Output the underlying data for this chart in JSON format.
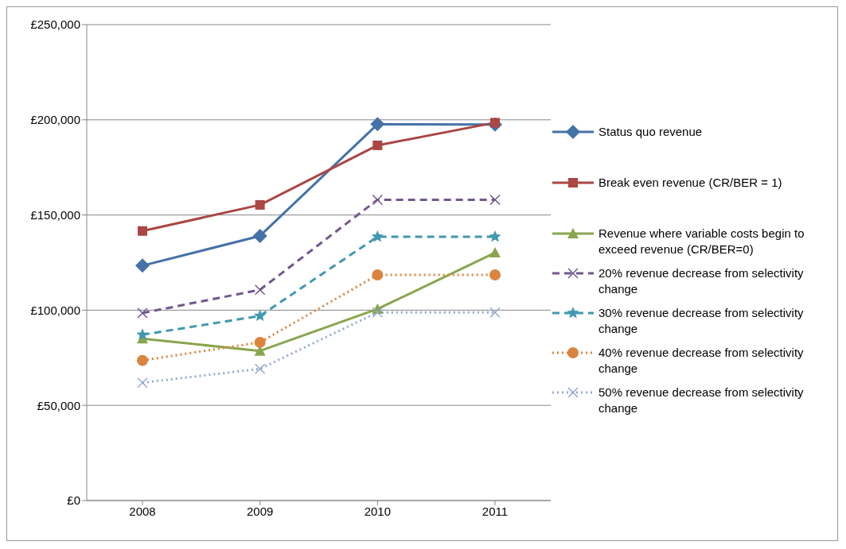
{
  "chart_data": {
    "type": "line",
    "categories": [
      "2008",
      "2009",
      "2010",
      "2011"
    ],
    "series": [
      {
        "name": "Status quo revenue",
        "color": "#4572a7",
        "marker": "diamond",
        "line_style": "solid",
        "values": [
          123400,
          139000,
          197700,
          197500
        ]
      },
      {
        "name": "Break even revenue (CR/BER = 1)",
        "color": "#aa4643",
        "marker": "square",
        "line_style": "solid",
        "values": [
          141600,
          155300,
          186600,
          198500
        ]
      },
      {
        "name": "Revenue where variable costs begin to exceed revenue (CR/BER=0)",
        "color": "#89a54e",
        "marker": "triangle",
        "line_style": "solid",
        "values": [
          85000,
          78600,
          100600,
          130200
        ]
      },
      {
        "name": "20% revenue decrease from selectivity change",
        "color": "#71588f",
        "marker": "cross",
        "line_style": "dashed",
        "values": [
          98500,
          110700,
          158000,
          158000
        ]
      },
      {
        "name": "30% revenue decrease from selectivity change",
        "color": "#4198af",
        "marker": "star",
        "line_style": "dashed",
        "values": [
          87100,
          97000,
          138600,
          138600
        ]
      },
      {
        "name": "40% revenue decrease from selectivity change",
        "color": "#db843d",
        "marker": "circle",
        "line_style": "dotted",
        "values": [
          73600,
          83100,
          118500,
          118500
        ]
      },
      {
        "name": "50% revenue decrease from selectivity change",
        "color": "#93a9cf",
        "marker": "cross",
        "line_style": "dotted",
        "values": [
          61900,
          69200,
          98800,
          98800
        ]
      }
    ],
    "ylim": [
      0,
      250000
    ],
    "yticks": [
      {
        "value": 0,
        "label": "£0"
      },
      {
        "value": 50000,
        "label": "£50,000"
      },
      {
        "value": 100000,
        "label": "£100,000"
      },
      {
        "value": 150000,
        "label": "£150,000"
      },
      {
        "value": 200000,
        "label": "£200,000"
      },
      {
        "value": 250000,
        "label": "£250,000"
      }
    ],
    "grid": "y",
    "legend": "right"
  }
}
